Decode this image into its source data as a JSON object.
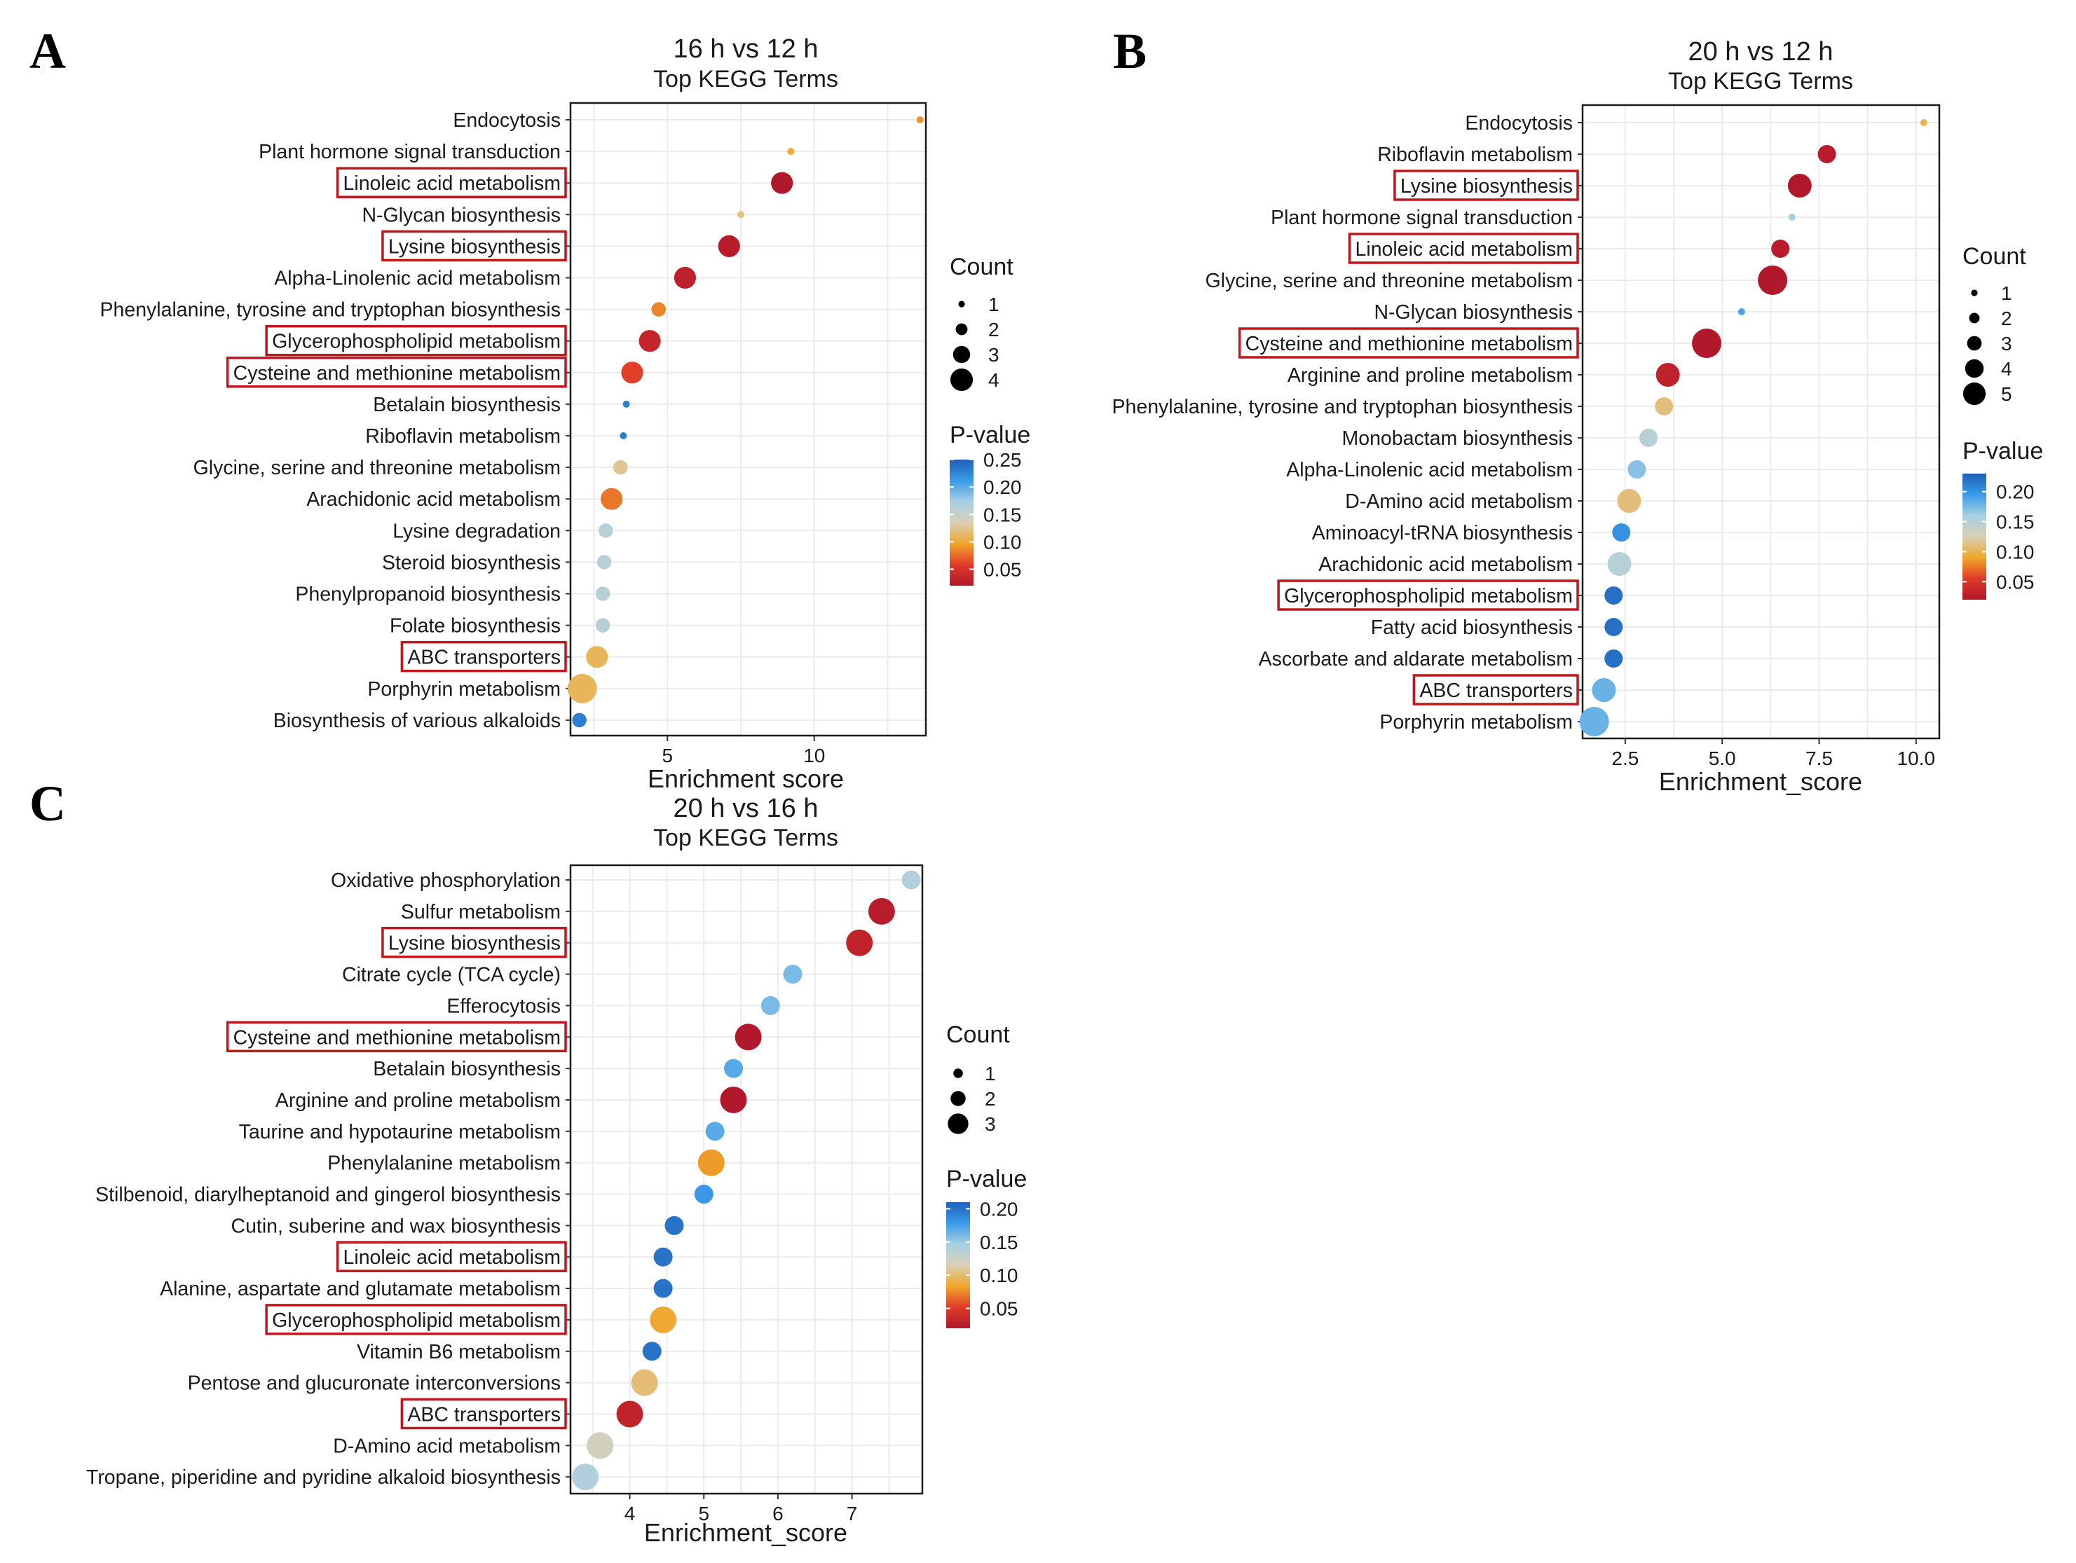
{
  "figure": {
    "colorbar": {
      "stops": [
        "#b2182b",
        "#e03a28",
        "#f0a62a",
        "#d9d0b8",
        "#a7d0e4",
        "#3a9be8",
        "#1f5fb8"
      ]
    },
    "box_color": "#c0161c"
  },
  "chart_data": [
    {
      "panel_label": "A",
      "type": "scatter",
      "title": "16 h vs 12 h",
      "subtitle": "Top KEGG Terms",
      "xlabel": "Enrichment  score",
      "xlim": [
        1.7,
        13.8
      ],
      "xticks": [
        5,
        10
      ],
      "xtick_labels": [
        "5",
        "10"
      ],
      "size_legend_title": "Count",
      "size_legend": [
        1,
        2,
        3,
        4
      ],
      "color_legend_title": "P-value",
      "color_range": [
        0.02,
        0.25
      ],
      "color_ticks": [
        0.25,
        0.2,
        0.15,
        0.1,
        0.05
      ],
      "color_tick_labels": [
        "0.25",
        "0.20",
        "0.15",
        "0.10",
        "0.05"
      ],
      "terms": [
        {
          "name": "Endocytosis",
          "x": 13.6,
          "count": 1,
          "p": 0.09,
          "boxed": false
        },
        {
          "name": "Plant hormone signal transduction",
          "x": 9.2,
          "count": 1,
          "p": 0.1,
          "boxed": false
        },
        {
          "name": "Linoleic acid metabolism",
          "x": 8.9,
          "count": 3,
          "p": 0.02,
          "boxed": true
        },
        {
          "name": "N-Glycan biosynthesis",
          "x": 7.5,
          "count": 1,
          "p": 0.12,
          "boxed": false
        },
        {
          "name": "Lysine biosynthesis",
          "x": 7.1,
          "count": 3,
          "p": 0.025,
          "boxed": true
        },
        {
          "name": "Alpha-Linolenic acid metabolism",
          "x": 5.6,
          "count": 3,
          "p": 0.03,
          "boxed": false
        },
        {
          "name": "Phenylalanine, tyrosine and tryptophan biosynthesis",
          "x": 4.7,
          "count": 2,
          "p": 0.085,
          "boxed": false
        },
        {
          "name": "Glycerophospholipid metabolism",
          "x": 4.4,
          "count": 3,
          "p": 0.035,
          "boxed": true
        },
        {
          "name": "Cysteine and methionine metabolism",
          "x": 3.8,
          "count": 3,
          "p": 0.06,
          "boxed": true
        },
        {
          "name": "Betalain biosynthesis",
          "x": 3.6,
          "count": 1,
          "p": 0.23,
          "boxed": false
        },
        {
          "name": "Riboflavin metabolism",
          "x": 3.5,
          "count": 1,
          "p": 0.23,
          "boxed": false
        },
        {
          "name": "Glycine, serine and threonine metabolism",
          "x": 3.4,
          "count": 2,
          "p": 0.125,
          "boxed": false
        },
        {
          "name": "Arachidonic acid metabolism",
          "x": 3.1,
          "count": 3,
          "p": 0.08,
          "boxed": false
        },
        {
          "name": "Lysine degradation",
          "x": 2.9,
          "count": 2,
          "p": 0.16,
          "boxed": false
        },
        {
          "name": "Steroid biosynthesis",
          "x": 2.85,
          "count": 2,
          "p": 0.16,
          "boxed": false
        },
        {
          "name": "Phenylpropanoid biosynthesis",
          "x": 2.8,
          "count": 2,
          "p": 0.16,
          "boxed": false
        },
        {
          "name": "Folate biosynthesis",
          "x": 2.8,
          "count": 2,
          "p": 0.16,
          "boxed": false
        },
        {
          "name": "ABC transporters",
          "x": 2.6,
          "count": 3,
          "p": 0.11,
          "boxed": true
        },
        {
          "name": "Porphyrin metabolism",
          "x": 2.1,
          "count": 4,
          "p": 0.11,
          "boxed": false
        },
        {
          "name": "Biosynthesis of various alkaloids",
          "x": 2.0,
          "count": 2,
          "p": 0.23,
          "boxed": false
        }
      ]
    },
    {
      "panel_label": "B",
      "type": "scatter",
      "title": "20 h vs  12 h",
      "subtitle": "Top KEGG Terms",
      "xlabel": "Enrichment_score",
      "xlim": [
        1.4,
        10.6
      ],
      "xticks": [
        2.5,
        5.0,
        7.5,
        10.0
      ],
      "xtick_labels": [
        "2.5",
        "5.0",
        "7.5",
        "10.0"
      ],
      "size_legend_title": "Count",
      "size_legend": [
        1,
        2,
        3,
        4,
        5
      ],
      "color_legend_title": "P-value",
      "color_range": [
        0.02,
        0.23
      ],
      "color_ticks": [
        0.2,
        0.15,
        0.1,
        0.05
      ],
      "color_tick_labels": [
        "0.20",
        "0.15",
        "0.10",
        "0.05"
      ],
      "terms": [
        {
          "name": "Endocytosis",
          "x": 10.2,
          "count": 1,
          "p": 0.1,
          "boxed": false
        },
        {
          "name": "Riboflavin metabolism",
          "x": 7.7,
          "count": 3,
          "p": 0.025,
          "boxed": false
        },
        {
          "name": "Lysine biosynthesis",
          "x": 7.0,
          "count": 4,
          "p": 0.02,
          "boxed": true
        },
        {
          "name": "Plant hormone signal transduction",
          "x": 6.8,
          "count": 1,
          "p": 0.16,
          "boxed": false
        },
        {
          "name": "Linoleic acid metabolism",
          "x": 6.5,
          "count": 3,
          "p": 0.025,
          "boxed": true
        },
        {
          "name": "Glycine, serine and threonine metabolism",
          "x": 6.3,
          "count": 5,
          "p": 0.02,
          "boxed": false
        },
        {
          "name": "N-Glycan biosynthesis",
          "x": 5.5,
          "count": 1,
          "p": 0.19,
          "boxed": false
        },
        {
          "name": "Cysteine and methionine metabolism",
          "x": 4.6,
          "count": 5,
          "p": 0.02,
          "boxed": true
        },
        {
          "name": "Arginine and proline metabolism",
          "x": 3.6,
          "count": 4,
          "p": 0.03,
          "boxed": false
        },
        {
          "name": "Phenylalanine, tyrosine and tryptophan biosynthesis",
          "x": 3.5,
          "count": 3,
          "p": 0.11,
          "boxed": false
        },
        {
          "name": "Monobactam biosynthesis",
          "x": 3.1,
          "count": 3,
          "p": 0.15,
          "boxed": false
        },
        {
          "name": "Alpha-Linolenic acid metabolism",
          "x": 2.8,
          "count": 3,
          "p": 0.17,
          "boxed": false
        },
        {
          "name": "D-Amino acid metabolism",
          "x": 2.6,
          "count": 4,
          "p": 0.11,
          "boxed": false
        },
        {
          "name": "Aminoacyl-tRNA biosynthesis",
          "x": 2.4,
          "count": 3,
          "p": 0.2,
          "boxed": false
        },
        {
          "name": "Arachidonic acid metabolism",
          "x": 2.35,
          "count": 4,
          "p": 0.15,
          "boxed": false
        },
        {
          "name": "Glycerophospholipid metabolism",
          "x": 2.2,
          "count": 3,
          "p": 0.22,
          "boxed": true
        },
        {
          "name": "Fatty acid biosynthesis",
          "x": 2.2,
          "count": 3,
          "p": 0.22,
          "boxed": false
        },
        {
          "name": "Ascorbate and aldarate metabolism",
          "x": 2.2,
          "count": 3,
          "p": 0.22,
          "boxed": false
        },
        {
          "name": "ABC transporters",
          "x": 1.95,
          "count": 4,
          "p": 0.18,
          "boxed": true
        },
        {
          "name": "Porphyrin metabolism",
          "x": 1.7,
          "count": 5,
          "p": 0.18,
          "boxed": false
        }
      ]
    },
    {
      "panel_label": "C",
      "type": "scatter",
      "title": "20 h vs 16 h",
      "subtitle": "Top KEGG Terms",
      "xlabel": "Enrichment_score",
      "xlim": [
        3.2,
        7.95
      ],
      "xticks": [
        4,
        5,
        6,
        7
      ],
      "xtick_labels": [
        "4",
        "5",
        "6",
        "7"
      ],
      "size_legend_title": "Count",
      "size_legend": [
        1,
        2,
        3
      ],
      "color_legend_title": "P-value",
      "color_range": [
        0.02,
        0.21
      ],
      "color_ticks": [
        0.2,
        0.15,
        0.1,
        0.05
      ],
      "color_tick_labels": [
        "0.20",
        "0.15",
        "0.10",
        "0.05"
      ],
      "terms": [
        {
          "name": "Oxidative phosphorylation",
          "x": 7.8,
          "count": 2,
          "p": 0.14,
          "boxed": false
        },
        {
          "name": "Sulfur metabolism",
          "x": 7.4,
          "count": 3,
          "p": 0.025,
          "boxed": false
        },
        {
          "name": "Lysine biosynthesis",
          "x": 7.1,
          "count": 3,
          "p": 0.03,
          "boxed": true
        },
        {
          "name": "Citrate cycle (TCA cycle)",
          "x": 6.2,
          "count": 2,
          "p": 0.16,
          "boxed": false
        },
        {
          "name": "Efferocytosis",
          "x": 5.9,
          "count": 2,
          "p": 0.16,
          "boxed": false
        },
        {
          "name": "Cysteine and methionine metabolism",
          "x": 5.6,
          "count": 3,
          "p": 0.02,
          "boxed": true
        },
        {
          "name": "Betalain biosynthesis",
          "x": 5.4,
          "count": 2,
          "p": 0.17,
          "boxed": false
        },
        {
          "name": "Arginine and proline metabolism",
          "x": 5.4,
          "count": 3,
          "p": 0.02,
          "boxed": false
        },
        {
          "name": "Taurine and hypotaurine metabolism",
          "x": 5.15,
          "count": 2,
          "p": 0.17,
          "boxed": false
        },
        {
          "name": "Phenylalanine metabolism",
          "x": 5.1,
          "count": 3,
          "p": 0.08,
          "boxed": false
        },
        {
          "name": "Stilbenoid, diarylheptanoid and gingerol biosynthesis",
          "x": 5.0,
          "count": 2,
          "p": 0.18,
          "boxed": false
        },
        {
          "name": "Cutin, suberine and wax biosynthesis",
          "x": 4.6,
          "count": 2,
          "p": 0.2,
          "boxed": false
        },
        {
          "name": "Linoleic acid metabolism",
          "x": 4.45,
          "count": 2,
          "p": 0.2,
          "boxed": true
        },
        {
          "name": "Alanine, aspartate and glutamate metabolism",
          "x": 4.45,
          "count": 2,
          "p": 0.2,
          "boxed": false
        },
        {
          "name": "Glycerophospholipid metabolism",
          "x": 4.45,
          "count": 3,
          "p": 0.085,
          "boxed": true
        },
        {
          "name": "Vitamin B6 metabolism",
          "x": 4.3,
          "count": 2,
          "p": 0.2,
          "boxed": false
        },
        {
          "name": "Pentose and glucuronate interconversions",
          "x": 4.2,
          "count": 3,
          "p": 0.1,
          "boxed": false
        },
        {
          "name": "ABC transporters",
          "x": 4.0,
          "count": 3,
          "p": 0.03,
          "boxed": true
        },
        {
          "name": "D-Amino acid metabolism",
          "x": 3.6,
          "count": 3,
          "p": 0.12,
          "boxed": false
        },
        {
          "name": "Tropane, piperidine and pyridine alkaloid biosynthesis",
          "x": 3.4,
          "count": 3,
          "p": 0.14,
          "boxed": false
        }
      ]
    }
  ]
}
